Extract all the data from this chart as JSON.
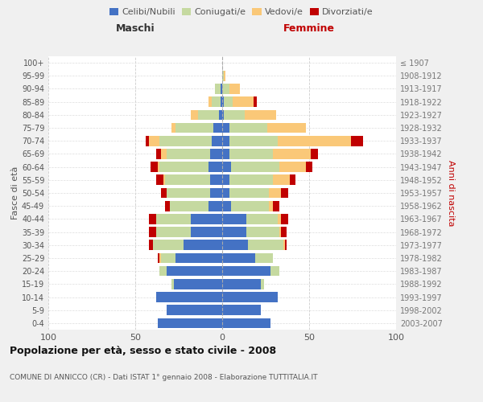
{
  "age_groups": [
    "0-4",
    "5-9",
    "10-14",
    "15-19",
    "20-24",
    "25-29",
    "30-34",
    "35-39",
    "40-44",
    "45-49",
    "50-54",
    "55-59",
    "60-64",
    "65-69",
    "70-74",
    "75-79",
    "80-84",
    "85-89",
    "90-94",
    "95-99",
    "100+"
  ],
  "birth_years": [
    "2003-2007",
    "1998-2002",
    "1993-1997",
    "1988-1992",
    "1983-1987",
    "1978-1982",
    "1973-1977",
    "1968-1972",
    "1963-1967",
    "1958-1962",
    "1953-1957",
    "1948-1952",
    "1943-1947",
    "1938-1942",
    "1933-1937",
    "1928-1932",
    "1923-1927",
    "1918-1922",
    "1913-1917",
    "1908-1912",
    "≤ 1907"
  ],
  "male": {
    "celibi": [
      37,
      32,
      38,
      28,
      32,
      27,
      22,
      18,
      18,
      8,
      7,
      7,
      8,
      7,
      6,
      5,
      2,
      1,
      1,
      0,
      0
    ],
    "coniugati": [
      0,
      0,
      0,
      1,
      4,
      8,
      18,
      20,
      20,
      22,
      25,
      26,
      28,
      25,
      30,
      22,
      12,
      5,
      3,
      0,
      0
    ],
    "vedovi": [
      0,
      0,
      0,
      0,
      0,
      1,
      0,
      0,
      0,
      0,
      0,
      1,
      1,
      3,
      6,
      2,
      4,
      2,
      0,
      0,
      0
    ],
    "divorziati": [
      0,
      0,
      0,
      0,
      0,
      1,
      2,
      4,
      4,
      3,
      3,
      4,
      4,
      3,
      2,
      0,
      0,
      0,
      0,
      0,
      0
    ]
  },
  "female": {
    "nubili": [
      28,
      22,
      32,
      22,
      28,
      19,
      15,
      14,
      14,
      5,
      4,
      4,
      5,
      4,
      4,
      4,
      1,
      1,
      0,
      0,
      0
    ],
    "coniugate": [
      0,
      0,
      0,
      2,
      5,
      10,
      20,
      19,
      18,
      22,
      23,
      25,
      28,
      25,
      28,
      22,
      12,
      5,
      4,
      1,
      0
    ],
    "vedove": [
      0,
      0,
      0,
      0,
      0,
      0,
      1,
      1,
      2,
      2,
      7,
      10,
      15,
      22,
      42,
      22,
      18,
      12,
      6,
      1,
      0
    ],
    "divorziate": [
      0,
      0,
      0,
      0,
      0,
      0,
      1,
      3,
      4,
      4,
      4,
      3,
      4,
      4,
      7,
      0,
      0,
      2,
      0,
      0,
      0
    ]
  },
  "colors": {
    "celibi_nubili": "#4472C4",
    "coniugati": "#C5D9A0",
    "vedovi": "#FAC878",
    "divorziati": "#C00000"
  },
  "title": "Popolazione per età, sesso e stato civile - 2008",
  "subtitle": "COMUNE DI ANNICCO (CR) - Dati ISTAT 1° gennaio 2008 - Elaborazione TUTTITALIA.IT",
  "xlabel_left": "Maschi",
  "xlabel_right": "Femmine",
  "ylabel_left": "Fasce di età",
  "ylabel_right": "Anni di nascita",
  "xlim": 100,
  "legend_labels": [
    "Celibi/Nubili",
    "Coniugati/e",
    "Vedovi/e",
    "Divorziati/e"
  ],
  "bg_color": "#f0f0f0",
  "plot_bg_color": "#ffffff"
}
